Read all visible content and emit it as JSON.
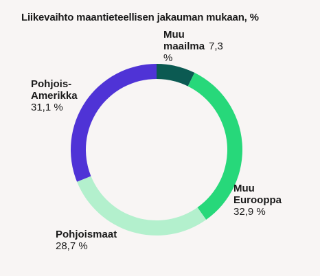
{
  "chart_data": {
    "type": "pie",
    "donut": true,
    "title": "Liikevaihto maantieteellisen jakauman mukaan, %",
    "slices": [
      {
        "label_line1": "Muu",
        "label_line2": "maailma",
        "value_text": "7,3",
        "value_text_2": "%",
        "value": 7.3,
        "color": "#0b5a52"
      },
      {
        "label_line1": "Muu",
        "label_line2": "Eurooppa",
        "value_text": "32,9 %",
        "value": 32.9,
        "color": "#27d87a"
      },
      {
        "label_line1": "Pohjoismaat",
        "label_line2": "",
        "value_text": "28,7 %",
        "value": 28.7,
        "color": "#b3f0cd"
      },
      {
        "label_line1": "Pohjois-",
        "label_line2": "Amerikka",
        "value_text": "31,1 %",
        "value": 31.1,
        "color": "#4f33d6"
      }
    ]
  }
}
